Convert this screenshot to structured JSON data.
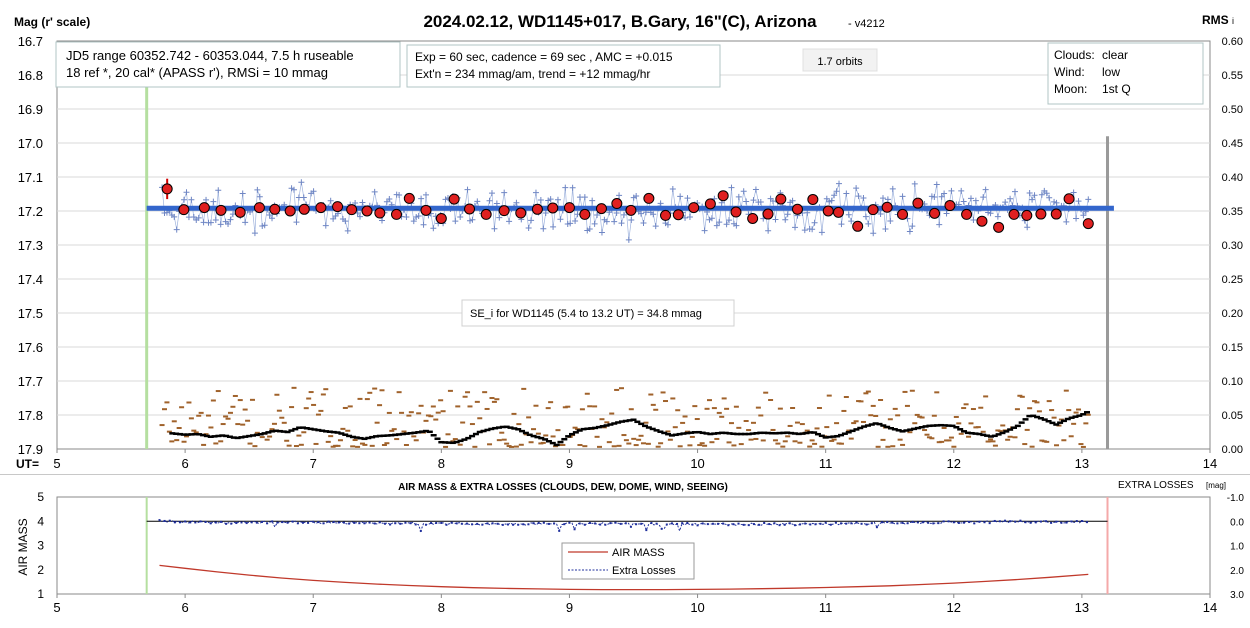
{
  "chart_data": [
    {
      "type": "scatter",
      "title": "2024.02.12, WD1145+017, B.Gary, 16\"(C), Arizona",
      "version_tag": "- v4212",
      "ylabel_left": "Mag (r' scale)",
      "ylabel_right": "RMS",
      "ylabel_right_sub": "i",
      "x_prefix": "UT=",
      "xlim": [
        5,
        14
      ],
      "ylim": [
        16.7,
        17.9
      ],
      "y_right_lim": [
        0.0,
        0.6
      ],
      "x_ticks": [
        "5",
        "6",
        "7",
        "8",
        "9",
        "10",
        "11",
        "12",
        "13",
        "14"
      ],
      "y_ticks": [
        "16.7",
        "16.8",
        "16.9",
        "17.0",
        "17.1",
        "17.2",
        "17.3",
        "17.4",
        "17.5",
        "17.6",
        "17.7",
        "17.8",
        "17.9"
      ],
      "y_right_ticks": [
        "0.60",
        "0.55",
        "0.50",
        "0.45",
        "0.40",
        "0.35",
        "0.30",
        "0.25",
        "0.20",
        "0.15",
        "0.10",
        "0.05",
        "0.00"
      ],
      "annotations": {
        "info1_line1": "JD5 range 60352.742 - 60353.044, 7.5 h ruseable",
        "info1_line2": "18 ref *, 20 cal*  (APASS r'), RMSi = 10 mmag",
        "info2_line1": "Exp = 60 sec, cadence = 69 sec , AMC = +0.015",
        "info2_line2": "Ext'n = 234 mmag/am, trend = +12 mmag/hr",
        "orbits": "1.7 orbits",
        "clouds_label": "Clouds:",
        "clouds_value": "clear",
        "wind_label": "Wind:",
        "wind_value": "low",
        "moon_label": "Moon:",
        "moon_value": "1st Q",
        "se_note": "SE_i for WD1145 (5.4 to 13.2 UT) = 34.8 mmag"
      },
      "markers": {
        "start_line_ut": 5.7,
        "end_line_ut": 13.2
      },
      "model_line": {
        "x": [
          5.7,
          13.25
        ],
        "y": [
          17.192,
          17.192
        ]
      },
      "series": [
        {
          "name": "binned",
          "x": [
            5.86,
            5.99,
            6.15,
            6.28,
            6.43,
            6.58,
            6.7,
            6.82,
            6.93,
            7.06,
            7.19,
            7.3,
            7.42,
            7.52,
            7.65,
            7.75,
            7.88,
            8.0,
            8.1,
            8.22,
            8.35,
            8.49,
            8.62,
            8.75,
            8.87,
            9.0,
            9.12,
            9.25,
            9.37,
            9.48,
            9.62,
            9.75,
            9.85,
            9.97,
            10.1,
            10.2,
            10.3,
            10.43,
            10.55,
            10.65,
            10.78,
            10.9,
            11.02,
            11.1,
            11.25,
            11.37,
            11.48,
            11.6,
            11.72,
            11.85,
            11.97,
            12.1,
            12.22,
            12.35,
            12.47,
            12.57,
            12.68,
            12.8,
            12.9,
            13.05
          ],
          "y": [
            17.135,
            17.196,
            17.19,
            17.198,
            17.204,
            17.19,
            17.195,
            17.2,
            17.195,
            17.19,
            17.187,
            17.196,
            17.2,
            17.206,
            17.21,
            17.163,
            17.198,
            17.222,
            17.165,
            17.194,
            17.21,
            17.199,
            17.206,
            17.195,
            17.191,
            17.19,
            17.21,
            17.193,
            17.178,
            17.198,
            17.163,
            17.213,
            17.211,
            17.19,
            17.179,
            17.155,
            17.203,
            17.222,
            17.209,
            17.165,
            17.195,
            17.166,
            17.2,
            17.204,
            17.245,
            17.196,
            17.189,
            17.21,
            17.177,
            17.207,
            17.184,
            17.21,
            17.23,
            17.248,
            17.21,
            17.213,
            17.209,
            17.209,
            17.164,
            17.237
          ],
          "error_bars": [
            [
              5.86,
              17.135,
              0.03
            ],
            [
              6.93,
              17.195,
              0.01
            ]
          ]
        },
        {
          "name": "RMS",
          "x": [
            5.9,
            6.0,
            6.1,
            6.2,
            6.3,
            6.4,
            6.5,
            6.6,
            6.7,
            6.8,
            6.9,
            7.0,
            7.1,
            7.2,
            7.3,
            7.4,
            7.5,
            7.6,
            7.7,
            7.8,
            7.9,
            8.0,
            8.1,
            8.2,
            8.3,
            8.4,
            8.5,
            8.6,
            8.7,
            8.8,
            8.9,
            9.0,
            9.1,
            9.2,
            9.3,
            9.4,
            9.5,
            9.6,
            9.7,
            9.8,
            9.9,
            10.0,
            10.1,
            10.2,
            10.3,
            10.4,
            10.5,
            10.6,
            10.7,
            10.8,
            10.9,
            11.0,
            11.1,
            11.2,
            11.3,
            11.4,
            11.5,
            11.6,
            11.7,
            11.8,
            11.9,
            12.0,
            12.1,
            12.2,
            12.3,
            12.4,
            12.5,
            12.6,
            12.7,
            12.8,
            12.9,
            13.0,
            13.05
          ],
          "y": [
            0.023,
            0.021,
            0.022,
            0.018,
            0.02,
            0.016,
            0.019,
            0.022,
            0.027,
            0.025,
            0.032,
            0.029,
            0.026,
            0.024,
            0.018,
            0.015,
            0.019,
            0.02,
            0.022,
            0.024,
            0.027,
            0.01,
            0.009,
            0.015,
            0.025,
            0.03,
            0.033,
            0.029,
            0.02,
            0.015,
            0.006,
            0.02,
            0.029,
            0.031,
            0.035,
            0.04,
            0.043,
            0.033,
            0.026,
            0.02,
            0.023,
            0.025,
            0.022,
            0.024,
            0.022,
            0.022,
            0.024,
            0.023,
            0.024,
            0.022,
            0.025,
            0.017,
            0.019,
            0.026,
            0.033,
            0.038,
            0.031,
            0.026,
            0.03,
            0.034,
            0.035,
            0.034,
            0.024,
            0.022,
            0.018,
            0.025,
            0.034,
            0.05,
            0.044,
            0.036,
            0.045,
            0.05,
            0.055
          ]
        },
        {
          "name": "unbinned",
          "range": [
            5.82,
            13.05
          ],
          "count": 380,
          "center": 17.195,
          "scatter": 0.035,
          "rms_scatter_range": [
            0.003,
            0.09
          ]
        }
      ]
    },
    {
      "type": "line",
      "title": "AIR MASS & EXTRA LOSSES (CLOUDS, DEW, DOME, WIND, SEEING)",
      "ylabel_left": "AIR MASS",
      "ylabel_right": "EXTRA LOSSES",
      "ylabel_right_unit": "[mag]",
      "xlim": [
        5,
        14
      ],
      "ylim": [
        1,
        5
      ],
      "y_right_lim": [
        -1.0,
        3.0
      ],
      "x_ticks": [
        "5",
        "6",
        "7",
        "8",
        "9",
        "10",
        "11",
        "12",
        "13",
        "14"
      ],
      "y_ticks": [
        "5",
        "4",
        "3",
        "2",
        "1"
      ],
      "y_right_ticks": [
        "-1.0",
        "0.0",
        "1.0",
        "2.0",
        "3.0"
      ],
      "markers": {
        "start_line_ut": 5.7,
        "end_line_ut": 13.2
      },
      "reference_line": {
        "x": [
          5.7,
          13.2
        ],
        "y": [
          0.0,
          0.0
        ]
      },
      "legend": {
        "placement": "bottom-center",
        "entries": [
          "AIR MASS",
          "Extra Losses"
        ]
      },
      "series": [
        {
          "name": "AIR MASS",
          "x": [
            5.8,
            6.0,
            6.25,
            6.5,
            6.75,
            7.0,
            7.25,
            7.5,
            7.75,
            8.0,
            8.25,
            8.5,
            8.75,
            9.0,
            9.25,
            9.5,
            9.75,
            10.0,
            10.25,
            10.5,
            10.75,
            11.0,
            11.25,
            11.5,
            11.75,
            12.0,
            12.25,
            12.5,
            12.75,
            13.05
          ],
          "y": [
            2.18,
            2.06,
            1.91,
            1.78,
            1.66,
            1.56,
            1.48,
            1.41,
            1.35,
            1.3,
            1.26,
            1.23,
            1.21,
            1.19,
            1.18,
            1.18,
            1.18,
            1.19,
            1.2,
            1.22,
            1.24,
            1.27,
            1.3,
            1.34,
            1.39,
            1.45,
            1.52,
            1.6,
            1.69,
            1.81
          ]
        },
        {
          "name": "Extra Losses",
          "x": [
            5.8,
            6.0,
            6.25,
            6.5,
            6.75,
            7.0,
            7.25,
            7.5,
            7.75,
            8.0,
            8.25,
            8.5,
            8.75,
            9.0,
            9.25,
            9.5,
            9.75,
            10.0,
            10.25,
            10.5,
            10.75,
            11.0,
            11.25,
            11.5,
            11.75,
            12.0,
            12.25,
            12.5,
            12.75,
            13.05
          ],
          "y": [
            0.0,
            0.03,
            0.06,
            0.05,
            0.04,
            0.05,
            0.06,
            0.08,
            0.09,
            0.1,
            0.1,
            0.11,
            0.11,
            0.1,
            0.1,
            0.11,
            0.11,
            0.12,
            0.12,
            0.12,
            0.12,
            0.11,
            0.1,
            0.08,
            0.06,
            0.05,
            0.03,
            0.01,
            0.02,
            0.03
          ]
        }
      ]
    }
  ]
}
